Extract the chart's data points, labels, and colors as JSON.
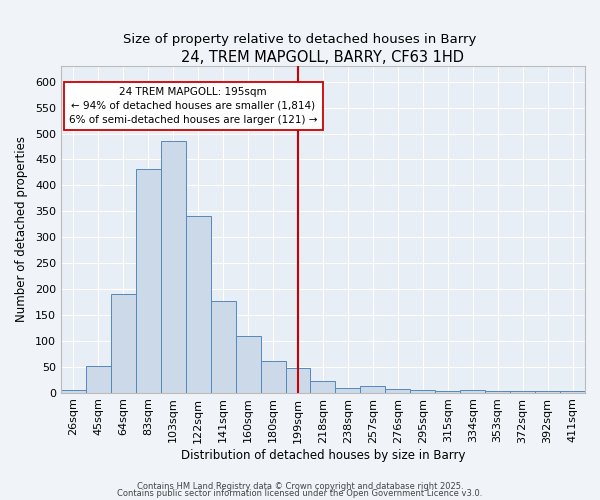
{
  "title": "24, TREM MAPGOLL, BARRY, CF63 1HD",
  "subtitle": "Size of property relative to detached houses in Barry",
  "xlabel": "Distribution of detached houses by size in Barry",
  "ylabel": "Number of detached properties",
  "bar_labels": [
    "26sqm",
    "45sqm",
    "64sqm",
    "83sqm",
    "103sqm",
    "122sqm",
    "141sqm",
    "160sqm",
    "180sqm",
    "199sqm",
    "218sqm",
    "238sqm",
    "257sqm",
    "276sqm",
    "295sqm",
    "315sqm",
    "334sqm",
    "353sqm",
    "372sqm",
    "392sqm",
    "411sqm"
  ],
  "bar_values": [
    5,
    52,
    190,
    432,
    485,
    340,
    177,
    110,
    62,
    47,
    22,
    10,
    12,
    7,
    5,
    4,
    5,
    3,
    4,
    3,
    3
  ],
  "bar_color": "#ccd9e8",
  "bar_edgecolor": "#5588bb",
  "background_color": "#f0f4f8",
  "plot_bg_color": "#e8eef5",
  "grid_color": "#ffffff",
  "vline_x": 9,
  "vline_color": "#cc0000",
  "annotation_text": "24 TREM MAPGOLL: 195sqm\n← 94% of detached houses are smaller (1,814)\n6% of semi-detached houses are larger (121) →",
  "annotation_box_edgecolor": "#cc0000",
  "annotation_box_facecolor": "#ffffff",
  "ylim": [
    0,
    630
  ],
  "yticks": [
    0,
    50,
    100,
    150,
    200,
    250,
    300,
    350,
    400,
    450,
    500,
    550,
    600
  ],
  "footer1": "Contains HM Land Registry data © Crown copyright and database right 2025.",
  "footer2": "Contains public sector information licensed under the Open Government Licence v3.0.",
  "title_fontsize": 10.5,
  "subtitle_fontsize": 9.5,
  "axis_label_fontsize": 8.5,
  "tick_fontsize": 8,
  "annotation_fontsize": 7.5,
  "footer_fontsize": 6
}
